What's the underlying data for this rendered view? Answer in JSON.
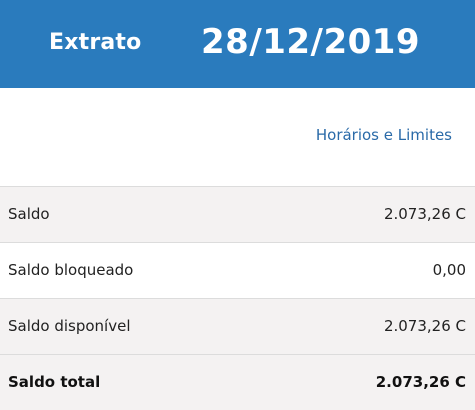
{
  "header": {
    "title": "Extrato",
    "date": "28/12/2019"
  },
  "links": {
    "hours_limits": "Horários e Limites"
  },
  "balances": [
    {
      "label": "Saldo",
      "value": "2.073,26 C"
    },
    {
      "label": "Saldo bloqueado",
      "value": "0,00"
    },
    {
      "label": "Saldo disponível",
      "value": "2.073,26 C"
    },
    {
      "label": "Saldo total",
      "value": "2.073,26 C"
    }
  ],
  "colors": {
    "header_bg": "#2a7bbd",
    "link": "#2a6aa8",
    "row_shade": "#f4f2f2"
  }
}
